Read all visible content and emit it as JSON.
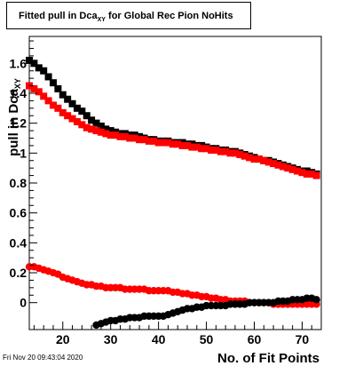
{
  "title": {
    "prefix": "Fitted pull in Dca",
    "subscript": "XY",
    "suffix": " for Global Rec Pion NoHits"
  },
  "footer": {
    "timestamp": "Fri Nov 20 09:43:04 2020"
  },
  "chart_data": {
    "type": "scatter",
    "title": "Fitted pull in DcaXY for Global Rec Pion NoHits",
    "xlabel": "No. of Fit Points",
    "ylabel": "pull in DcaXY",
    "xlim": [
      13,
      74
    ],
    "ylim": [
      -0.18,
      1.78
    ],
    "xticks": [
      20,
      30,
      40,
      50,
      60,
      70
    ],
    "yticks": [
      0,
      0.2,
      0.4,
      0.6,
      0.8,
      1,
      1.2,
      1.4,
      1.6
    ],
    "ytick_labels": [
      "0",
      "0.2",
      "0.4",
      "0.6",
      "0.8",
      "1",
      "1.2",
      "1.4",
      "1.6"
    ],
    "grid": false,
    "series": [
      {
        "color": "#000000",
        "marker": "square",
        "x": [
          13,
          14,
          15,
          16,
          17,
          18,
          19,
          20,
          21,
          22,
          23,
          24,
          25,
          26,
          27,
          28,
          29,
          30,
          31,
          32,
          33,
          34,
          35,
          36,
          37,
          38,
          39,
          40,
          41,
          42,
          43,
          44,
          45,
          46,
          47,
          48,
          49,
          50,
          51,
          52,
          53,
          54,
          55,
          56,
          57,
          58,
          59,
          60,
          61,
          62,
          63,
          64,
          65,
          66,
          67,
          68,
          69,
          70,
          71,
          72,
          73
        ],
        "y": [
          1.62,
          1.6,
          1.57,
          1.55,
          1.51,
          1.47,
          1.43,
          1.39,
          1.36,
          1.33,
          1.3,
          1.28,
          1.25,
          1.22,
          1.2,
          1.18,
          1.16,
          1.15,
          1.14,
          1.13,
          1.13,
          1.12,
          1.12,
          1.11,
          1.1,
          1.09,
          1.09,
          1.08,
          1.08,
          1.08,
          1.07,
          1.07,
          1.07,
          1.06,
          1.06,
          1.05,
          1.05,
          1.04,
          1.03,
          1.03,
          1.02,
          1.02,
          1.01,
          1.01,
          1,
          0.99,
          0.98,
          0.97,
          0.96,
          0.95,
          0.95,
          0.94,
          0.93,
          0.92,
          0.91,
          0.9,
          0.89,
          0.88,
          0.88,
          0.87,
          0.86
        ]
      },
      {
        "color": "#ff0000",
        "marker": "square",
        "x": [
          13,
          14,
          15,
          16,
          17,
          18,
          19,
          20,
          21,
          22,
          23,
          24,
          25,
          26,
          27,
          28,
          29,
          30,
          31,
          32,
          33,
          34,
          35,
          36,
          37,
          38,
          39,
          40,
          41,
          42,
          43,
          44,
          45,
          46,
          47,
          48,
          49,
          50,
          51,
          52,
          53,
          54,
          55,
          56,
          57,
          58,
          59,
          60,
          61,
          62,
          63,
          64,
          65,
          66,
          67,
          68,
          69,
          70,
          71,
          72,
          73
        ],
        "y": [
          1.45,
          1.43,
          1.41,
          1.38,
          1.35,
          1.32,
          1.3,
          1.27,
          1.25,
          1.23,
          1.21,
          1.19,
          1.17,
          1.16,
          1.15,
          1.14,
          1.13,
          1.12,
          1.12,
          1.11,
          1.11,
          1.1,
          1.1,
          1.09,
          1.09,
          1.08,
          1.08,
          1.07,
          1.07,
          1.07,
          1.06,
          1.06,
          1.05,
          1.05,
          1.04,
          1.04,
          1.03,
          1.03,
          1.02,
          1.02,
          1.01,
          1.01,
          1,
          1,
          0.99,
          0.98,
          0.97,
          0.96,
          0.96,
          0.95,
          0.94,
          0.93,
          0.92,
          0.91,
          0.9,
          0.89,
          0.88,
          0.87,
          0.86,
          0.86,
          0.85
        ]
      },
      {
        "color": "#ff0000",
        "marker": "circle",
        "x": [
          13,
          14,
          15,
          16,
          17,
          18,
          19,
          20,
          21,
          22,
          23,
          24,
          25,
          26,
          27,
          28,
          29,
          30,
          31,
          32,
          33,
          34,
          35,
          36,
          37,
          38,
          39,
          40,
          41,
          42,
          43,
          44,
          45,
          46,
          47,
          48,
          49,
          50,
          51,
          52,
          53,
          54,
          55,
          56,
          57,
          58,
          59,
          60,
          61,
          62,
          63,
          64,
          65,
          66,
          67,
          68,
          69,
          70,
          71,
          72,
          73
        ],
        "y": [
          0.24,
          0.24,
          0.23,
          0.22,
          0.21,
          0.2,
          0.19,
          0.17,
          0.16,
          0.15,
          0.14,
          0.13,
          0.12,
          0.12,
          0.11,
          0.11,
          0.1,
          0.1,
          0.1,
          0.1,
          0.09,
          0.09,
          0.09,
          0.09,
          0.09,
          0.08,
          0.08,
          0.08,
          0.08,
          0.08,
          0.07,
          0.07,
          0.06,
          0.06,
          0.05,
          0.05,
          0.04,
          0.04,
          0.03,
          0.03,
          0.02,
          0.02,
          0.01,
          0.01,
          0.01,
          0.01,
          0.0,
          0.0,
          0.0,
          0.0,
          0.0,
          -0.01,
          -0.01,
          -0.01,
          -0.01,
          -0.01,
          -0.01,
          -0.01,
          -0.01,
          -0.01,
          -0.01
        ]
      },
      {
        "color": "#000000",
        "marker": "circle",
        "x": [
          27,
          28,
          29,
          30,
          31,
          32,
          33,
          34,
          35,
          36,
          37,
          38,
          39,
          40,
          41,
          42,
          43,
          44,
          45,
          46,
          47,
          48,
          49,
          50,
          51,
          52,
          53,
          54,
          55,
          56,
          57,
          58,
          59,
          60,
          61,
          62,
          63,
          64,
          65,
          66,
          67,
          68,
          69,
          70,
          71,
          72,
          73
        ],
        "y": [
          -0.15,
          -0.14,
          -0.13,
          -0.12,
          -0.12,
          -0.11,
          -0.11,
          -0.1,
          -0.1,
          -0.1,
          -0.09,
          -0.09,
          -0.09,
          -0.09,
          -0.09,
          -0.08,
          -0.07,
          -0.06,
          -0.05,
          -0.04,
          -0.04,
          -0.03,
          -0.03,
          -0.02,
          -0.02,
          -0.02,
          -0.02,
          -0.02,
          -0.01,
          -0.01,
          -0.01,
          -0.01,
          0.0,
          0.0,
          0.0,
          0.0,
          0.0,
          0.0,
          0.01,
          0.01,
          0.01,
          0.02,
          0.02,
          0.02,
          0.03,
          0.03,
          0.02
        ]
      }
    ]
  }
}
